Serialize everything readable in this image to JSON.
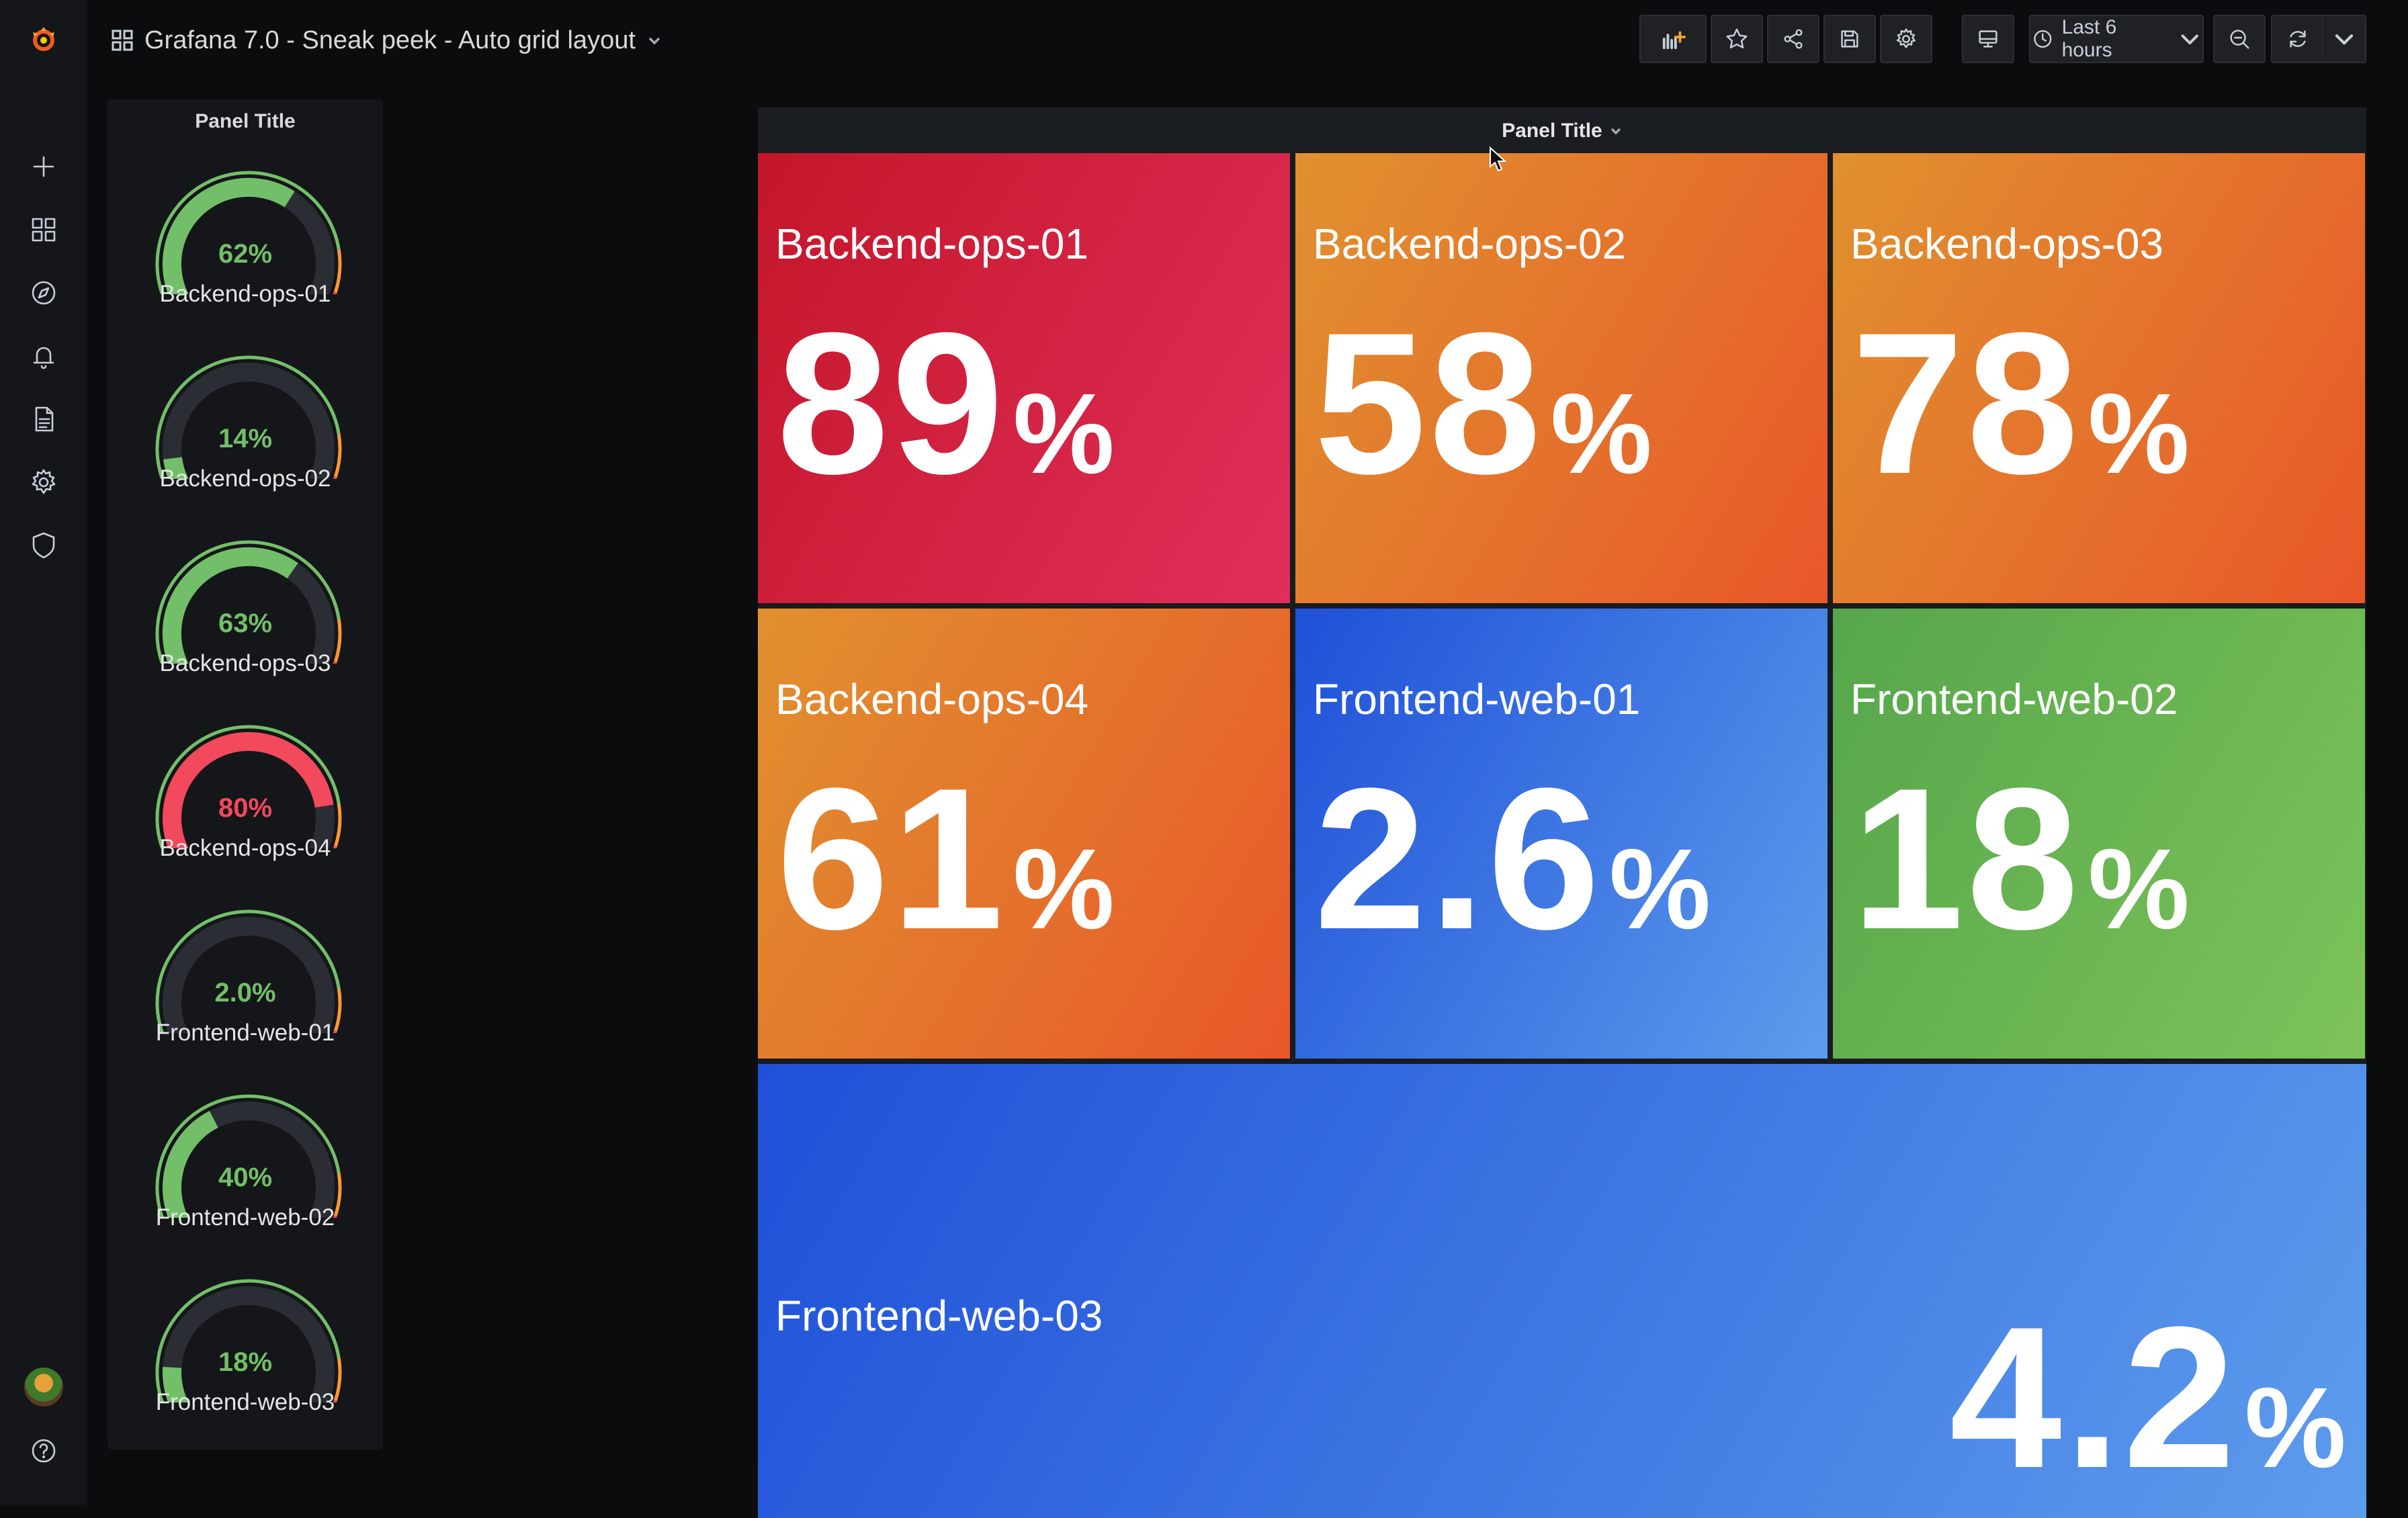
{
  "topbar": {
    "dashboard_title": "Grafana 7.0 - Sneak peek - Auto grid layout",
    "time_range": "Last 6 hours",
    "icons": [
      "add-panel-icon",
      "star-icon",
      "share-icon",
      "save-icon",
      "settings-icon",
      "tv-icon",
      "clock-icon",
      "zoom-out-icon",
      "refresh-icon",
      "chevron-down-icon"
    ]
  },
  "sidemenu": {
    "icons": [
      "grafana-logo-icon",
      "plus-icon",
      "dashboards-icon",
      "explore-icon",
      "alerting-icon",
      "document-icon",
      "configuration-icon",
      "shield-icon",
      "avatar",
      "help-icon"
    ]
  },
  "gauge_panel": {
    "title": "Panel Title",
    "gauges": [
      {
        "name": "Backend-ops-01",
        "value": 62,
        "label": "62%",
        "color": "#73bf69"
      },
      {
        "name": "Backend-ops-02",
        "value": 14,
        "label": "14%",
        "color": "#73bf69"
      },
      {
        "name": "Backend-ops-03",
        "value": 63,
        "label": "63%",
        "color": "#73bf69"
      },
      {
        "name": "Backend-ops-04",
        "value": 80,
        "label": "80%",
        "color": "#f2495c"
      },
      {
        "name": "Frontend-web-01",
        "value": 2.0,
        "label": "2.0%",
        "color": "#73bf69"
      },
      {
        "name": "Frontend-web-02",
        "value": 40,
        "label": "40%",
        "color": "#73bf69"
      },
      {
        "name": "Frontend-web-03",
        "value": 18,
        "label": "18%",
        "color": "#73bf69"
      }
    ]
  },
  "stat_panel": {
    "title": "Panel Title",
    "tiles": [
      {
        "name": "Backend-ops-01",
        "value": "89",
        "unit": "%",
        "color_from": "#c4162a",
        "color_to": "#e02f5a"
      },
      {
        "name": "Backend-ops-02",
        "value": "58",
        "unit": "%",
        "color_from": "#e0912f",
        "color_to": "#e8572a"
      },
      {
        "name": "Backend-ops-03",
        "value": "78",
        "unit": "%",
        "color_from": "#e0912f",
        "color_to": "#e8572a"
      },
      {
        "name": "Backend-ops-04",
        "value": "61",
        "unit": "%",
        "color_from": "#e0912f",
        "color_to": "#e8572a"
      },
      {
        "name": "Frontend-web-01",
        "value": "2.6",
        "unit": "%",
        "color_from": "#1f50d8",
        "color_to": "#5d9cec"
      },
      {
        "name": "Frontend-web-02",
        "value": "18",
        "unit": "%",
        "color_from": "#56a64b",
        "color_to": "#7cc35a"
      },
      {
        "name": "Frontend-web-03",
        "value": "4.2",
        "unit": "%",
        "color_from": "#1f50d8",
        "color_to": "#5d9cec"
      }
    ]
  }
}
